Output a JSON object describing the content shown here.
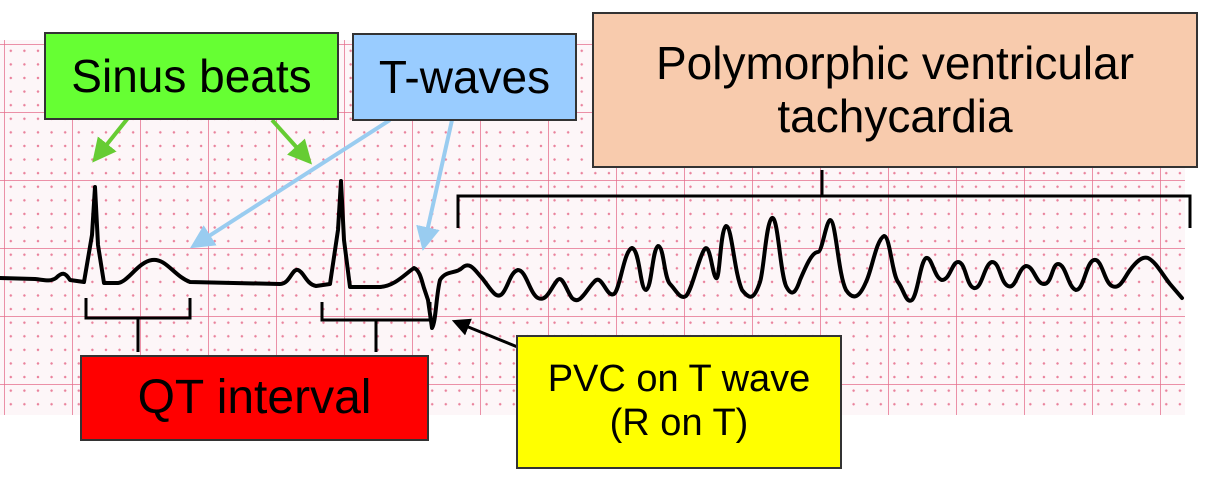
{
  "labels": {
    "sinus_beats": {
      "text": "Sinus beats",
      "color": "#66ff33"
    },
    "t_waves": {
      "text": "T-waves",
      "color": "#99ccff"
    },
    "polymorphic_vt": {
      "text": "Polymorphic ventricular tachycardia",
      "color": "#f8cbad"
    },
    "qt_interval": {
      "text": "QT interval",
      "color": "#ff0000"
    },
    "pvc_on_t": {
      "line1": "PVC on T wave",
      "line2": "(R on T)",
      "color": "#ffff00"
    }
  },
  "colors": {
    "ecg_trace": "#000000",
    "sinus_arrow": "#66cc33",
    "t_wave_arrow": "#99ccf0",
    "bracket": "#000000",
    "grid": "#e66e8c"
  }
}
